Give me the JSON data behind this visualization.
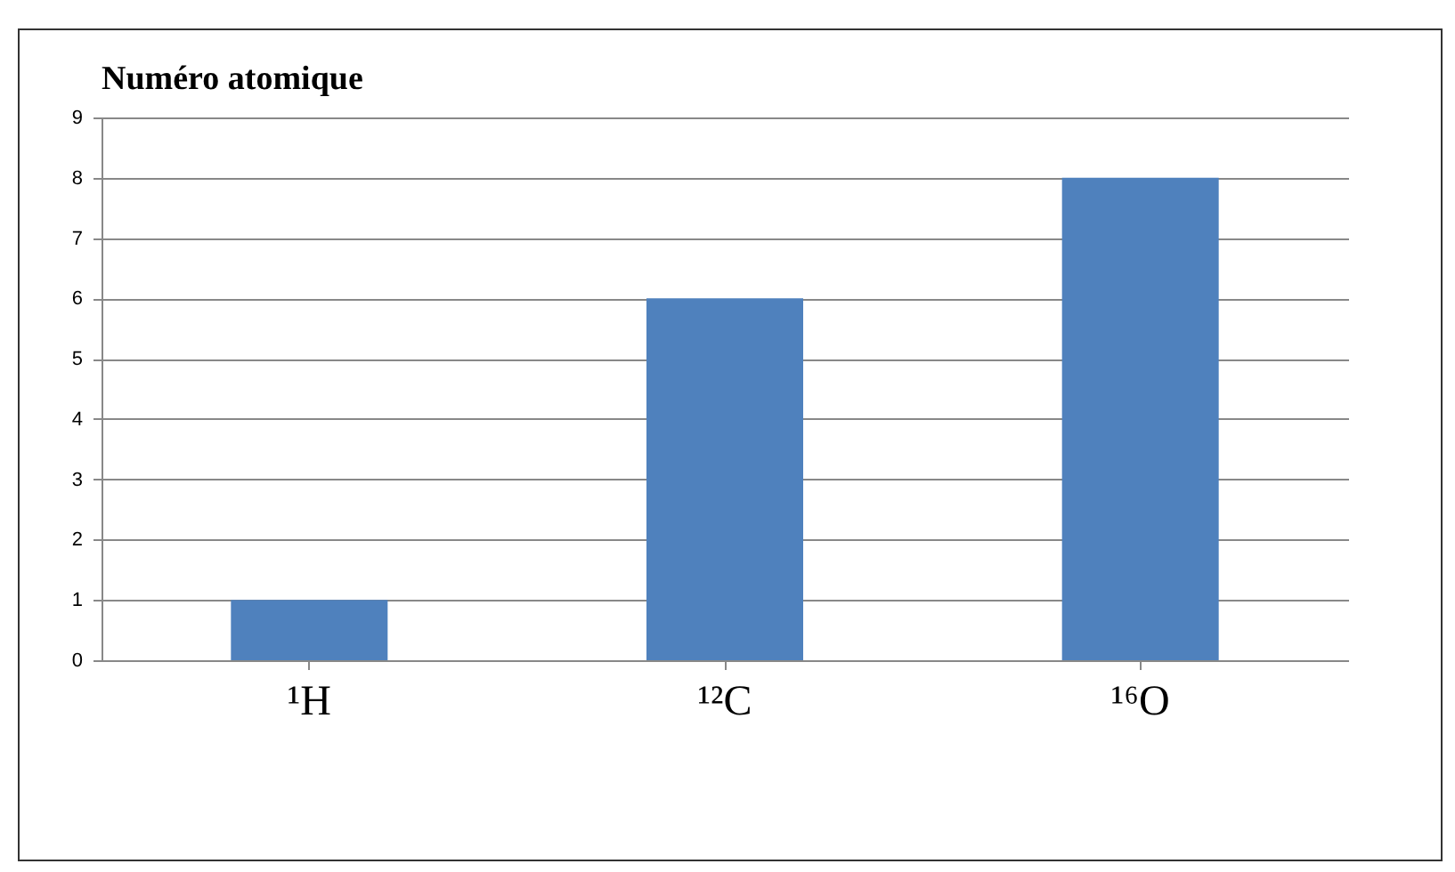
{
  "chart_data": {
    "type": "bar",
    "title": "Numéro atomique",
    "categories": [
      "¹H",
      "¹²C",
      "¹⁶O"
    ],
    "values": [
      1,
      6,
      8
    ],
    "color": "#4f81bd",
    "ylim": [
      0,
      9
    ],
    "yticks": [
      0,
      1,
      2,
      3,
      4,
      5,
      6,
      7,
      8,
      9
    ],
    "grid": "y"
  }
}
